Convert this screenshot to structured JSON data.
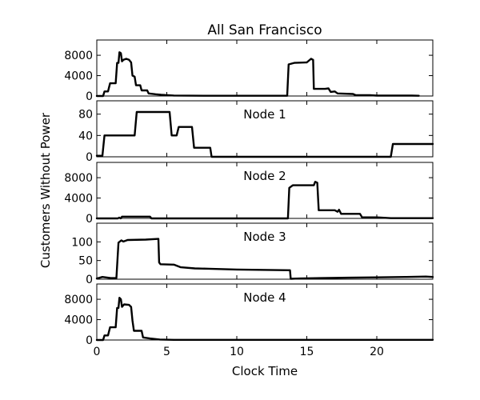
{
  "chart_data": {
    "type": "line",
    "title": "All San Francisco",
    "xlabel": "Clock Time",
    "ylabel": "Customers Without Power",
    "xlim": [
      0,
      24
    ],
    "xticks": [
      0,
      5,
      10,
      15,
      20
    ],
    "xtick_labels": [
      "0",
      "5",
      "10",
      "15",
      "20"
    ],
    "series_color": "#000000",
    "panels": [
      {
        "label": "",
        "ylim": [
          0,
          11000
        ],
        "yticks": [
          0,
          4000,
          8000
        ],
        "ytick_labels": [
          "0",
          "4000",
          "8000"
        ],
        "points": [
          [
            0,
            0
          ],
          [
            0.45,
            0
          ],
          [
            0.55,
            900
          ],
          [
            0.8,
            900
          ],
          [
            0.95,
            2500
          ],
          [
            1.35,
            2500
          ],
          [
            1.45,
            6500
          ],
          [
            1.55,
            6500
          ],
          [
            1.62,
            8600
          ],
          [
            1.72,
            8400
          ],
          [
            1.8,
            6800
          ],
          [
            1.9,
            7100
          ],
          [
            2.1,
            7300
          ],
          [
            2.3,
            7100
          ],
          [
            2.45,
            6600
          ],
          [
            2.55,
            4000
          ],
          [
            2.7,
            3800
          ],
          [
            2.8,
            2100
          ],
          [
            3.1,
            2100
          ],
          [
            3.2,
            1100
          ],
          [
            3.6,
            1100
          ],
          [
            3.7,
            500
          ],
          [
            4.2,
            350
          ],
          [
            4.6,
            250
          ],
          [
            5.5,
            100
          ],
          [
            8,
            50
          ],
          [
            13.6,
            50
          ],
          [
            13.7,
            6200
          ],
          [
            14.1,
            6500
          ],
          [
            15.0,
            6600
          ],
          [
            15.3,
            7300
          ],
          [
            15.45,
            7100
          ],
          [
            15.5,
            1400
          ],
          [
            16.3,
            1400
          ],
          [
            16.55,
            1500
          ],
          [
            16.7,
            800
          ],
          [
            17.0,
            900
          ],
          [
            17.2,
            500
          ],
          [
            18.3,
            400
          ],
          [
            18.5,
            150
          ],
          [
            19.5,
            150
          ],
          [
            20,
            80
          ],
          [
            22.5,
            80
          ],
          [
            23,
            50
          ]
        ]
      },
      {
        "label": "Node 1",
        "ylim": [
          0,
          105
        ],
        "yticks": [
          0,
          40,
          80
        ],
        "ytick_labels": [
          "0",
          "40",
          "80"
        ],
        "points": [
          [
            0,
            2
          ],
          [
            0.4,
            2
          ],
          [
            0.55,
            40
          ],
          [
            2.7,
            40
          ],
          [
            2.85,
            84
          ],
          [
            5.2,
            84
          ],
          [
            5.35,
            40
          ],
          [
            5.7,
            40
          ],
          [
            5.85,
            56
          ],
          [
            6.8,
            56
          ],
          [
            6.95,
            17
          ],
          [
            8.1,
            17
          ],
          [
            8.2,
            0
          ],
          [
            21.0,
            0
          ],
          [
            21.15,
            24
          ],
          [
            24,
            24
          ]
        ]
      },
      {
        "label": "Node 2",
        "ylim": [
          0,
          11000
        ],
        "yticks": [
          0,
          4000,
          8000
        ],
        "ytick_labels": [
          "0",
          "4000",
          "8000"
        ],
        "points": [
          [
            0,
            0
          ],
          [
            1.5,
            0
          ],
          [
            1.6,
            150
          ],
          [
            1.7,
            0
          ],
          [
            1.8,
            350
          ],
          [
            3.8,
            350
          ],
          [
            3.9,
            0
          ],
          [
            13.65,
            0
          ],
          [
            13.75,
            6000
          ],
          [
            14.0,
            6500
          ],
          [
            15.5,
            6500
          ],
          [
            15.6,
            7200
          ],
          [
            15.75,
            7000
          ],
          [
            15.85,
            1600
          ],
          [
            17.0,
            1600
          ],
          [
            17.2,
            1300
          ],
          [
            17.3,
            1700
          ],
          [
            17.45,
            900
          ],
          [
            18.8,
            900
          ],
          [
            18.95,
            200
          ],
          [
            20,
            200
          ],
          [
            21,
            50
          ],
          [
            24,
            50
          ]
        ]
      },
      {
        "label": "Node 3",
        "ylim": [
          0,
          150
        ],
        "yticks": [
          0,
          50,
          100
        ],
        "ytick_labels": [
          "0",
          "50",
          "100"
        ],
        "points": [
          [
            0,
            2
          ],
          [
            0.4,
            6
          ],
          [
            1.0,
            3
          ],
          [
            1.4,
            3
          ],
          [
            1.55,
            98
          ],
          [
            1.75,
            104
          ],
          [
            1.9,
            101
          ],
          [
            2.2,
            105
          ],
          [
            3.5,
            106
          ],
          [
            4.4,
            108
          ],
          [
            4.45,
            45
          ],
          [
            4.55,
            40
          ],
          [
            5.5,
            39
          ],
          [
            6.0,
            32
          ],
          [
            7.0,
            29
          ],
          [
            8.0,
            28
          ],
          [
            10,
            26
          ],
          [
            13.8,
            24
          ],
          [
            13.85,
            1
          ],
          [
            14.5,
            2
          ],
          [
            16,
            3
          ],
          [
            18,
            4
          ],
          [
            20,
            5
          ],
          [
            22,
            6
          ],
          [
            23.5,
            7
          ],
          [
            24,
            6
          ]
        ]
      },
      {
        "label": "Node 4",
        "ylim": [
          0,
          11000
        ],
        "yticks": [
          0,
          4000,
          8000
        ],
        "ytick_labels": [
          "0",
          "4000",
          "8000"
        ],
        "points": [
          [
            0,
            0
          ],
          [
            0.45,
            0
          ],
          [
            0.55,
            900
          ],
          [
            0.8,
            900
          ],
          [
            0.95,
            2500
          ],
          [
            1.35,
            2500
          ],
          [
            1.45,
            6300
          ],
          [
            1.55,
            6300
          ],
          [
            1.62,
            8300
          ],
          [
            1.72,
            8000
          ],
          [
            1.8,
            6500
          ],
          [
            1.95,
            7000
          ],
          [
            2.3,
            6900
          ],
          [
            2.45,
            6500
          ],
          [
            2.55,
            3800
          ],
          [
            2.65,
            1800
          ],
          [
            3.2,
            1800
          ],
          [
            3.3,
            500
          ],
          [
            3.8,
            300
          ],
          [
            4.5,
            100
          ],
          [
            5.5,
            30
          ],
          [
            24,
            30
          ]
        ]
      }
    ]
  }
}
